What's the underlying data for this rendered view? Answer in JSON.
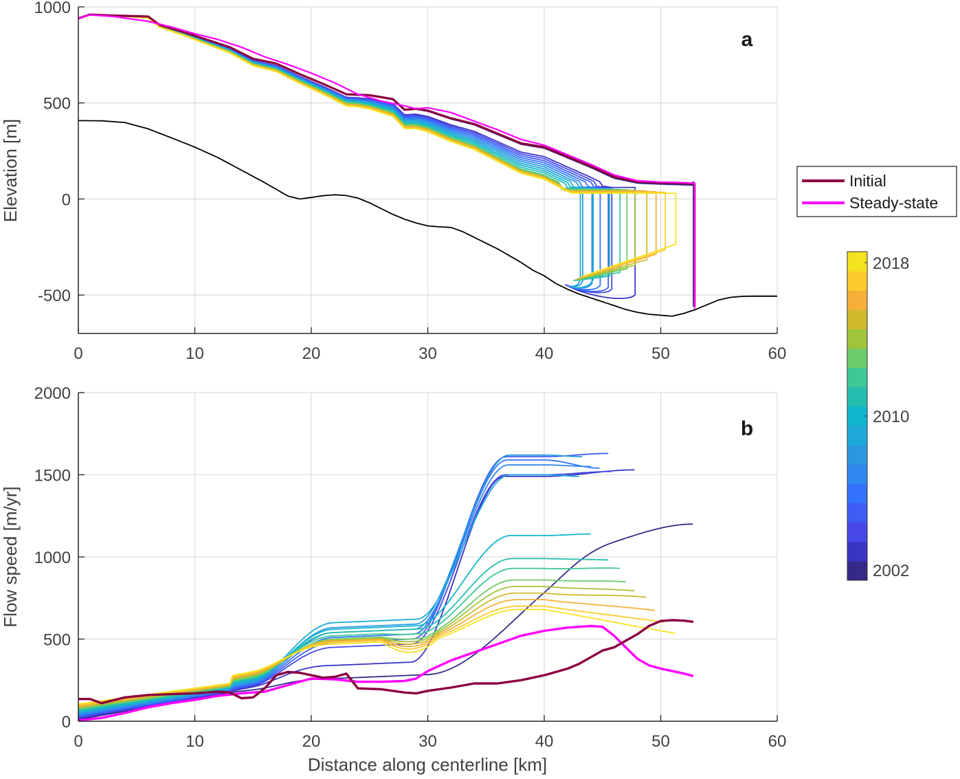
{
  "chart_data": [
    {
      "id": "a",
      "type": "line",
      "panel_label": "a",
      "xlabel": "",
      "ylabel": "Elevation [m]",
      "xlim": [
        0,
        60
      ],
      "ylim": [
        -700,
        1000
      ],
      "xticks": [
        0,
        10,
        20,
        30,
        40,
        50,
        60
      ],
      "yticks": [
        -500,
        0,
        500,
        1000
      ],
      "grid": true,
      "bed": {
        "name": "Bed",
        "color": "#000000",
        "x": [
          0,
          2,
          4,
          6,
          8,
          10,
          12,
          14,
          16,
          17,
          18,
          19,
          20,
          21,
          22,
          23,
          24,
          25,
          26,
          27,
          28,
          29,
          30,
          31,
          32,
          33,
          34,
          35,
          36,
          37,
          38,
          39,
          40,
          41,
          42,
          43,
          44,
          45,
          46,
          47,
          48,
          49,
          50,
          51,
          52,
          53,
          54,
          55,
          56,
          57,
          58,
          60
        ],
        "y": [
          408,
          407,
          398,
          365,
          318,
          270,
          215,
          150,
          85,
          50,
          15,
          0,
          8,
          17,
          22,
          18,
          5,
          -20,
          -50,
          -80,
          -105,
          -125,
          -140,
          -145,
          -148,
          -170,
          -200,
          -230,
          -260,
          -295,
          -330,
          -370,
          -400,
          -440,
          -470,
          -495,
          -515,
          -535,
          -555,
          -575,
          -590,
          -600,
          -605,
          -610,
          -595,
          -575,
          -550,
          -525,
          -512,
          -507,
          -506,
          -506
        ]
      },
      "initial": {
        "name": "Initial",
        "color": "#8b0040",
        "x": [
          0,
          1,
          3,
          6,
          7,
          9,
          11,
          13,
          15,
          17,
          19,
          21,
          23,
          25,
          27,
          28,
          29,
          30,
          32,
          34,
          36,
          38,
          40,
          42,
          44,
          46,
          48,
          50,
          52,
          52.9,
          52.9
        ],
        "y": [
          940,
          960,
          955,
          950,
          905,
          870,
          830,
          790,
          730,
          705,
          650,
          600,
          545,
          540,
          520,
          465,
          470,
          460,
          420,
          390,
          340,
          290,
          270,
          220,
          170,
          115,
          90,
          85,
          82,
          80,
          -560
        ]
      },
      "steady_state": {
        "name": "Steady-state",
        "color": "#ff00ff",
        "x": [
          0,
          1,
          3,
          6,
          8,
          10,
          12,
          14,
          16,
          18,
          20,
          22,
          24,
          26,
          28,
          29,
          30,
          32,
          34,
          36,
          38,
          40,
          42,
          44,
          46,
          48,
          50,
          52,
          52.9,
          52.9
        ],
        "y": [
          940,
          958,
          950,
          925,
          895,
          860,
          830,
          790,
          740,
          700,
          655,
          605,
          545,
          510,
          485,
          470,
          475,
          450,
          405,
          360,
          310,
          280,
          230,
          180,
          125,
          95,
          88,
          85,
          82,
          -570
        ]
      },
      "surface_years": {
        "description": "Modeled surface profiles, one per year 2002-2018, colored by year",
        "years": [
          2002,
          2003,
          2004,
          2005,
          2006,
          2007,
          2008,
          2009,
          2010,
          2011,
          2012,
          2013,
          2014,
          2015,
          2016,
          2017,
          2018
        ],
        "terminus_km": [
          52.8,
          47.8,
          45.8,
          45.5,
          44.8,
          44.1,
          43.3,
          43.1,
          44.2,
          45.6,
          46.5,
          47.1,
          47.8,
          48.8,
          49.6,
          50.4,
          51.3
        ],
        "terminus_top_m": [
          90,
          60,
          58,
          57,
          57,
          56,
          55,
          55,
          55,
          52,
          50,
          48,
          45,
          42,
          38,
          35,
          30
        ],
        "terminus_bottom_m": [
          -560,
          -500,
          -470,
          -460,
          -450,
          -440,
          -430,
          -425,
          -420,
          -400,
          -380,
          -360,
          -340,
          -310,
          -280,
          -255,
          -225
        ]
      }
    },
    {
      "id": "b",
      "type": "line",
      "panel_label": "b",
      "xlabel": "Distance along centerline [km]",
      "ylabel": "Flow speed [m/yr]",
      "xlim": [
        0,
        60
      ],
      "ylim": [
        0,
        2000
      ],
      "xticks": [
        0,
        10,
        20,
        30,
        40,
        50,
        60
      ],
      "yticks": [
        0,
        500,
        1000,
        1500,
        2000
      ],
      "grid": true,
      "initial": {
        "name": "Initial",
        "color": "#8b0040",
        "x": [
          0,
          1,
          2,
          4,
          6,
          8,
          10,
          12,
          13,
          14,
          15,
          16,
          17,
          18,
          19,
          20,
          21,
          22,
          23,
          24,
          26,
          28,
          29,
          30,
          32,
          34,
          36,
          38,
          40,
          42,
          43,
          44,
          45,
          46,
          47,
          48,
          49,
          50,
          51,
          52,
          52.8
        ],
        "y": [
          135,
          135,
          110,
          145,
          160,
          165,
          170,
          180,
          175,
          140,
          145,
          200,
          280,
          300,
          295,
          280,
          265,
          270,
          290,
          200,
          195,
          175,
          170,
          185,
          205,
          230,
          230,
          250,
          280,
          320,
          350,
          390,
          430,
          450,
          490,
          530,
          580,
          610,
          615,
          612,
          605
        ]
      },
      "steady_state": {
        "name": "Steady-state",
        "color": "#ff00ff",
        "x": [
          0,
          2,
          4,
          6,
          8,
          10,
          12,
          14,
          16,
          18,
          20,
          22,
          24,
          26,
          28,
          29,
          30,
          32,
          34,
          36,
          38,
          40,
          42,
          44,
          45,
          46,
          47,
          48,
          49,
          50,
          51,
          52,
          52.8
        ],
        "y": [
          5,
          20,
          50,
          85,
          110,
          130,
          155,
          170,
          180,
          220,
          260,
          255,
          240,
          240,
          245,
          260,
          305,
          370,
          420,
          470,
          520,
          550,
          570,
          580,
          575,
          520,
          450,
          380,
          340,
          320,
          305,
          290,
          275
        ]
      },
      "speed_years": {
        "description": "Modeled flow speed profiles, one per year 2002-2018, colored by year",
        "years": [
          2002,
          2003,
          2004,
          2005,
          2006,
          2007,
          2008,
          2009,
          2010,
          2011,
          2012,
          2013,
          2014,
          2015,
          2016,
          2017,
          2018
        ],
        "end_km": [
          52.8,
          47.8,
          45.8,
          45.5,
          44.8,
          44.1,
          43.3,
          43.1,
          44.2,
          45.6,
          46.5,
          47.1,
          47.8,
          48.8,
          49.6,
          50.4,
          51.3
        ],
        "plateau_speed": [
          1000,
          1490,
          1500,
          1610,
          1590,
          1560,
          1620,
          1500,
          1130,
          990,
          930,
          860,
          820,
          780,
          740,
          700,
          680
        ],
        "end_speed": [
          1200,
          1530,
          1520,
          1630,
          1540,
          1550,
          1610,
          1490,
          1140,
          990,
          950,
          880,
          840,
          820,
          760,
          710,
          670
        ],
        "shelf_speed_25km": [
          260,
          340,
          450,
          480,
          510,
          540,
          570,
          600,
          560,
          540,
          520,
          500,
          495,
          490,
          485,
          480,
          470
        ]
      }
    }
  ],
  "legend": {
    "items": [
      {
        "label": "Initial",
        "color": "#8b0040"
      },
      {
        "label": "Steady-state",
        "color": "#ff00ff"
      }
    ]
  },
  "colorbar": {
    "min": 2002,
    "max": 2018,
    "ticks": [
      "2018",
      "2010",
      "2002"
    ],
    "colors": [
      "#352a87",
      "#3a34c4",
      "#4848e8",
      "#3f5cf5",
      "#3373fb",
      "#2f87ef",
      "#2a98e0",
      "#1fa9d8",
      "#10b6cf",
      "#25bdb0",
      "#3dc896",
      "#6dcb6b",
      "#a0c43b",
      "#cfba2e",
      "#f6b03a",
      "#fdcb2d",
      "#f5e31f"
    ]
  }
}
